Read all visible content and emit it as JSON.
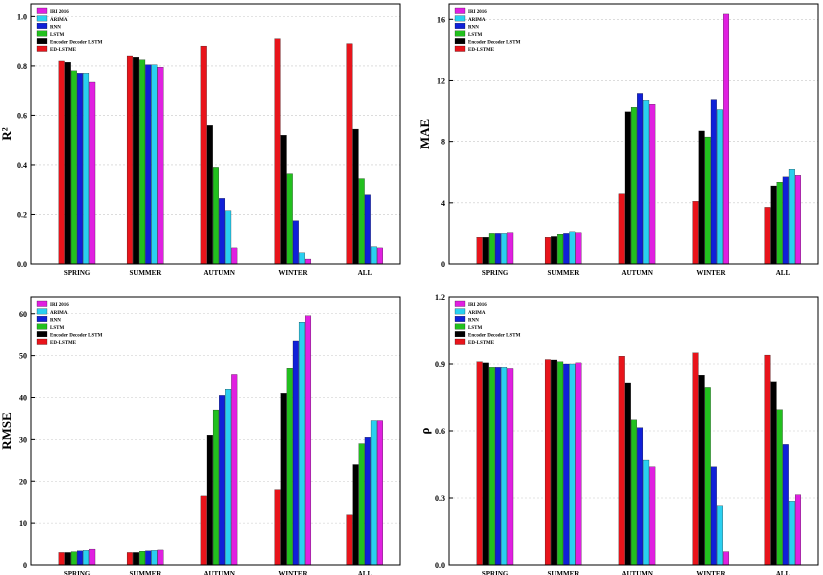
{
  "chart_data": [
    {
      "type": "bar",
      "ylabel": "R²",
      "ylim": [
        0,
        1.05
      ],
      "yticks": [
        "0.0",
        "0.2",
        "0.4",
        "0.6",
        "0.8",
        "1.0"
      ],
      "ytick_values": [
        0,
        0.2,
        0.4,
        0.6,
        0.8,
        1.0
      ],
      "legend_position": "top-left",
      "legend_order": [
        5,
        4,
        3,
        2,
        1,
        0
      ],
      "grid": true,
      "categories": [
        "SPRING",
        "SUMMER",
        "AUTUMN",
        "WINTER",
        "ALL"
      ],
      "series": [
        {
          "name": "ED-LSTME",
          "color": "#e8141b",
          "values": [
            0.82,
            0.84,
            0.88,
            0.91,
            0.89
          ]
        },
        {
          "name": "Encoder Decoder LSTM",
          "color": "#000000",
          "values": [
            0.815,
            0.835,
            0.56,
            0.52,
            0.545
          ]
        },
        {
          "name": "LSTM",
          "color": "#22c01e",
          "values": [
            0.78,
            0.825,
            0.39,
            0.365,
            0.345
          ]
        },
        {
          "name": "RNN",
          "color": "#1020d8",
          "values": [
            0.77,
            0.805,
            0.265,
            0.175,
            0.28
          ]
        },
        {
          "name": "ARIMA",
          "color": "#2ad0f0",
          "values": [
            0.77,
            0.805,
            0.215,
            0.045,
            0.07
          ]
        },
        {
          "name": "IRI 2016",
          "color": "#e020e0",
          "values": [
            0.735,
            0.795,
            0.065,
            0.02,
            0.065
          ]
        }
      ]
    },
    {
      "type": "bar",
      "ylabel": "MAE",
      "ylim": [
        0,
        17
      ],
      "yticks": [
        "0",
        "4",
        "8",
        "12",
        "16"
      ],
      "ytick_values": [
        0,
        4,
        8,
        12,
        16
      ],
      "legend_position": "top-left",
      "legend_order": [
        5,
        4,
        3,
        2,
        1,
        0
      ],
      "grid": true,
      "categories": [
        "SPRING",
        "SUMMER",
        "AUTUMN",
        "WINTER",
        "ALL"
      ],
      "series": [
        {
          "name": "ED-LSTME",
          "color": "#e8141b",
          "values": [
            1.75,
            1.75,
            4.6,
            4.1,
            3.7
          ]
        },
        {
          "name": "Encoder Decoder LSTM",
          "color": "#000000",
          "values": [
            1.75,
            1.8,
            9.95,
            8.7,
            5.1
          ]
        },
        {
          "name": "LSTM",
          "color": "#22c01e",
          "values": [
            2.0,
            1.95,
            10.25,
            8.3,
            5.35
          ]
        },
        {
          "name": "RNN",
          "color": "#1020d8",
          "values": [
            2.0,
            2.0,
            11.15,
            10.75,
            5.7
          ]
        },
        {
          "name": "ARIMA",
          "color": "#2ad0f0",
          "values": [
            2.0,
            2.1,
            10.7,
            10.1,
            6.2
          ]
        },
        {
          "name": "IRI 2016",
          "color": "#e020e0",
          "values": [
            2.05,
            2.05,
            10.45,
            16.35,
            5.8
          ]
        }
      ]
    },
    {
      "type": "bar",
      "ylabel": "RMSE",
      "ylim": [
        0,
        64
      ],
      "yticks": [
        "0",
        "10",
        "20",
        "30",
        "40",
        "50",
        "60"
      ],
      "ytick_values": [
        0,
        10,
        20,
        30,
        40,
        50,
        60
      ],
      "legend_position": "top-left",
      "legend_order": [
        5,
        4,
        3,
        2,
        1,
        0
      ],
      "grid": true,
      "categories": [
        "SPRING",
        "SUMMER",
        "AUTUMN",
        "WINTER",
        "ALL"
      ],
      "series": [
        {
          "name": "ED-LSTME",
          "color": "#e8141b",
          "values": [
            3.0,
            3.0,
            16.5,
            18.0,
            12.0
          ]
        },
        {
          "name": "Encoder Decoder LSTM",
          "color": "#000000",
          "values": [
            3.0,
            3.0,
            31.0,
            41.0,
            24.0
          ]
        },
        {
          "name": "LSTM",
          "color": "#22c01e",
          "values": [
            3.2,
            3.3,
            37.0,
            47.0,
            29.0
          ]
        },
        {
          "name": "RNN",
          "color": "#1020d8",
          "values": [
            3.4,
            3.4,
            40.5,
            53.5,
            30.5
          ]
        },
        {
          "name": "ARIMA",
          "color": "#2ad0f0",
          "values": [
            3.5,
            3.5,
            42.0,
            58.0,
            34.5
          ]
        },
        {
          "name": "IRI 2016",
          "color": "#e020e0",
          "values": [
            3.8,
            3.6,
            45.5,
            59.5,
            34.5
          ]
        }
      ]
    },
    {
      "type": "bar",
      "ylabel": "ρ",
      "ylim": [
        0,
        1.2
      ],
      "yticks": [
        "0.0",
        "0.3",
        "0.6",
        "0.9",
        "1.2"
      ],
      "ytick_values": [
        0,
        0.3,
        0.6,
        0.9,
        1.2
      ],
      "legend_position": "top-left",
      "legend_order": [
        5,
        4,
        3,
        2,
        1,
        0
      ],
      "grid": true,
      "categories": [
        "SPRING",
        "SUMMER",
        "AUTUMN",
        "WINTER",
        "ALL"
      ],
      "series": [
        {
          "name": "ED-LSTME",
          "color": "#e8141b",
          "values": [
            0.91,
            0.92,
            0.935,
            0.95,
            0.94
          ]
        },
        {
          "name": "Encoder Decoder LSTM",
          "color": "#000000",
          "values": [
            0.905,
            0.918,
            0.815,
            0.85,
            0.82
          ]
        },
        {
          "name": "LSTM",
          "color": "#22c01e",
          "values": [
            0.885,
            0.91,
            0.65,
            0.795,
            0.695
          ]
        },
        {
          "name": "RNN",
          "color": "#1020d8",
          "values": [
            0.885,
            0.9,
            0.615,
            0.44,
            0.54
          ]
        },
        {
          "name": "ARIMA",
          "color": "#2ad0f0",
          "values": [
            0.885,
            0.9,
            0.47,
            0.265,
            0.285
          ]
        },
        {
          "name": "IRI 2016",
          "color": "#e020e0",
          "values": [
            0.88,
            0.905,
            0.44,
            0.06,
            0.315
          ]
        }
      ]
    }
  ]
}
